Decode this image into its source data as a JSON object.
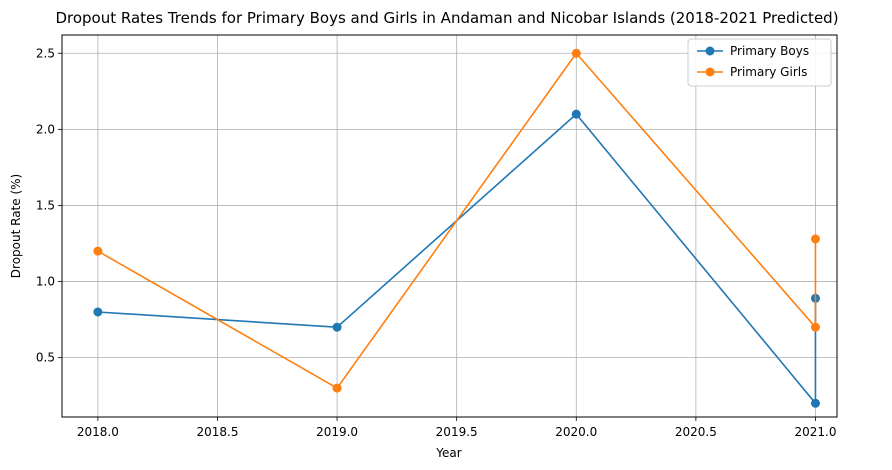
{
  "chart_data": {
    "type": "line",
    "title": "Dropout Rates Trends for Primary Boys and Girls in Andaman and Nicobar Islands (2018-2021 Predicted)",
    "xlabel": "Year",
    "ylabel": "Dropout Rate (%)",
    "xlim": [
      2017.85,
      2021.09
    ],
    "ylim": [
      0.11,
      2.62
    ],
    "xticks": [
      2018.0,
      2018.5,
      2019.0,
      2019.5,
      2020.0,
      2020.5,
      2021.0
    ],
    "xtick_labels": [
      "2018.0",
      "2018.5",
      "2019.0",
      "2019.5",
      "2020.0",
      "2020.5",
      "2021.0"
    ],
    "yticks": [
      0.5,
      1.0,
      1.5,
      2.0,
      2.5
    ],
    "ytick_labels": [
      "0.5",
      "1.0",
      "1.5",
      "2.0",
      "2.5"
    ],
    "grid": true,
    "legend_position": "top-right",
    "series": [
      {
        "name": "Primary Boys",
        "color": "#1f77b4",
        "x": [
          2018,
          2019,
          2020,
          2021,
          2021
        ],
        "y": [
          0.8,
          0.7,
          2.1,
          0.2,
          0.89
        ]
      },
      {
        "name": "Primary Girls",
        "color": "#ff7f0e",
        "x": [
          2018,
          2019,
          2020,
          2021,
          2021
        ],
        "y": [
          1.2,
          0.3,
          2.5,
          0.7,
          1.28
        ]
      }
    ]
  }
}
